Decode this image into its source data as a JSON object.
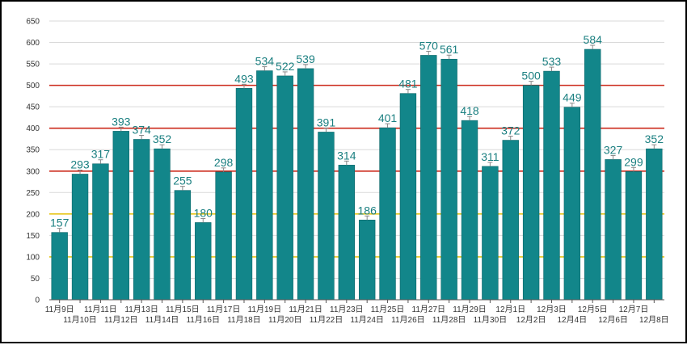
{
  "chart_data": {
    "type": "bar",
    "categories": [
      "11月9日",
      "11月10日",
      "11月11日",
      "11月12日",
      "11月13日",
      "11月14日",
      "11月15日",
      "11月16日",
      "11月17日",
      "11月18日",
      "11月19日",
      "11月20日",
      "11月21日",
      "11月22日",
      "11月23日",
      "11月24日",
      "11月25日",
      "11月26日",
      "11月27日",
      "11月28日",
      "11月29日",
      "11月30日",
      "12月1日",
      "12月2日",
      "12月3日",
      "12月4日",
      "12月5日",
      "12月6日",
      "12月7日",
      "12月8日"
    ],
    "values": [
      157,
      293,
      317,
      393,
      374,
      352,
      255,
      180,
      298,
      493,
      534,
      522,
      539,
      391,
      314,
      186,
      401,
      481,
      570,
      561,
      418,
      311,
      372,
      500,
      533,
      449,
      584,
      327,
      299,
      352
    ],
    "ylim": [
      0,
      650
    ],
    "yticks": [
      0,
      50,
      100,
      150,
      200,
      250,
      300,
      350,
      400,
      450,
      500,
      550,
      600,
      650
    ],
    "grid": true,
    "reference_lines": [
      {
        "value": 100,
        "color": "#e6c619"
      },
      {
        "value": 200,
        "color": "#e6c619"
      },
      {
        "value": 300,
        "color": "#cc2a1c"
      },
      {
        "value": 400,
        "color": "#cc2a1c"
      },
      {
        "value": 500,
        "color": "#cc2a1c"
      }
    ],
    "colors": {
      "bar": "#12868a",
      "bar_edge": "#0b6669",
      "data_label": "#1a7f80",
      "grid": "#d9d9d9",
      "axis": "#555555"
    }
  }
}
